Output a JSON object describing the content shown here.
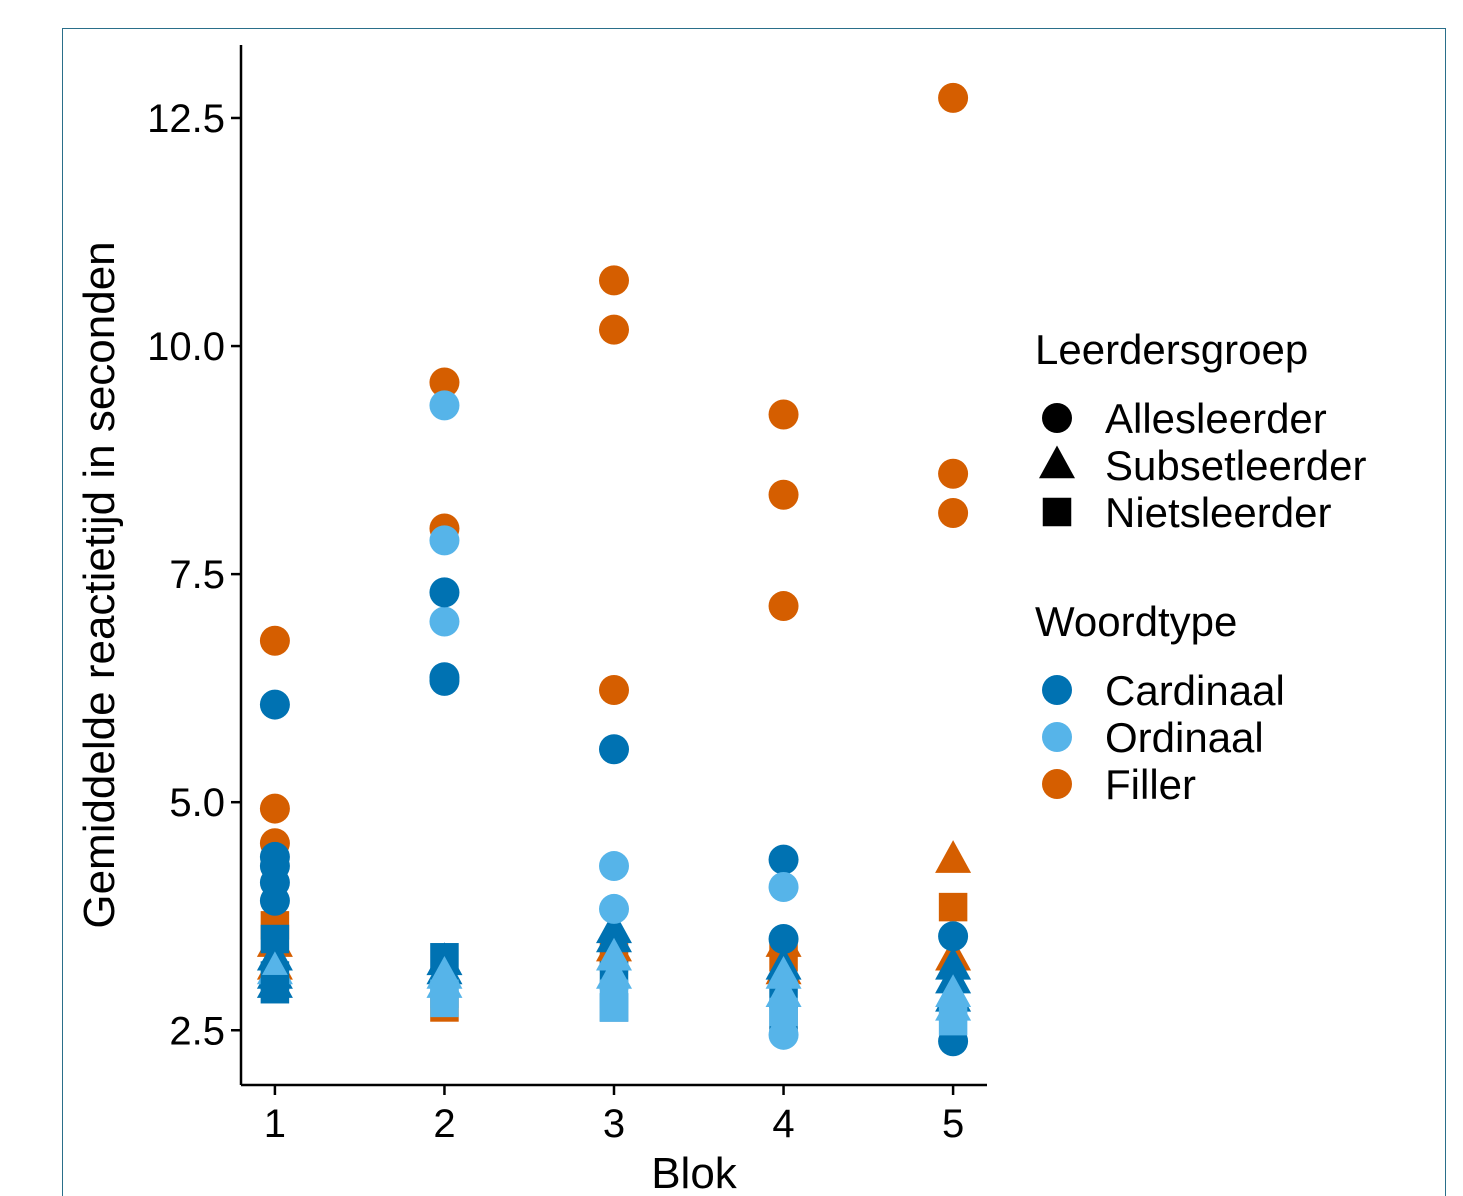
{
  "chart_data": {
    "type": "scatter",
    "xlabel": "Blok",
    "ylabel": "Gemiddelde reactietijd in seconden",
    "x_ticks": [
      "1",
      "2",
      "3",
      "4",
      "5"
    ],
    "y_ticks": [
      "2.5",
      "5.0",
      "7.5",
      "10.0",
      "12.5"
    ],
    "xlim": [
      0.8,
      5.2
    ],
    "ylim": [
      1.9,
      13.3
    ],
    "grid": false,
    "legend": {
      "placement": "right",
      "shape_title": "Leerdersgroep",
      "shape_entries": [
        {
          "label": "Allesleerder",
          "shape": "circle"
        },
        {
          "label": "Subsetleerder",
          "shape": "triangle"
        },
        {
          "label": "Nietsleerder",
          "shape": "square"
        }
      ],
      "color_title": "Woordtype",
      "color_entries": [
        {
          "label": "Cardinaal",
          "color": "#0072B2"
        },
        {
          "label": "Ordinaal",
          "color": "#56B4E9"
        },
        {
          "label": "Filler",
          "color": "#D55E00"
        }
      ]
    },
    "colors": {
      "Cardinaal": "#0072B2",
      "Ordinaal": "#56B4E9",
      "Filler": "#D55E00"
    },
    "points": [
      {
        "x": 1,
        "y": 6.77,
        "type": "Filler",
        "group": "Allesleerder"
      },
      {
        "x": 1,
        "y": 4.93,
        "type": "Filler",
        "group": "Allesleerder"
      },
      {
        "x": 1,
        "y": 4.55,
        "type": "Filler",
        "group": "Allesleerder"
      },
      {
        "x": 1,
        "y": 3.65,
        "type": "Filler",
        "group": "Nietsleerder"
      },
      {
        "x": 1,
        "y": 3.45,
        "type": "Filler",
        "group": "Subsetleerder"
      },
      {
        "x": 1,
        "y": 3.2,
        "type": "Filler",
        "group": "Subsetleerder"
      },
      {
        "x": 1,
        "y": 6.07,
        "type": "Cardinaal",
        "group": "Allesleerder"
      },
      {
        "x": 1,
        "y": 4.4,
        "type": "Cardinaal",
        "group": "Allesleerder"
      },
      {
        "x": 1,
        "y": 4.3,
        "type": "Cardinaal",
        "group": "Allesleerder"
      },
      {
        "x": 1,
        "y": 4.12,
        "type": "Cardinaal",
        "group": "Allesleerder"
      },
      {
        "x": 1,
        "y": 3.92,
        "type": "Cardinaal",
        "group": "Allesleerder"
      },
      {
        "x": 1,
        "y": 3.5,
        "type": "Cardinaal",
        "group": "Nietsleerder"
      },
      {
        "x": 1,
        "y": 3.3,
        "type": "Cardinaal",
        "group": "Subsetleerder"
      },
      {
        "x": 1,
        "y": 3.1,
        "type": "Cardinaal",
        "group": "Subsetleerder"
      },
      {
        "x": 1,
        "y": 3.0,
        "type": "Cardinaal",
        "group": "Subsetleerder"
      },
      {
        "x": 1,
        "y": 3.1,
        "type": "Cardinaal",
        "group": "Nietsleerder"
      },
      {
        "x": 1,
        "y": 3.15,
        "type": "Ordinaal",
        "group": "Subsetleerder"
      },
      {
        "x": 1,
        "y": 2.95,
        "type": "Cardinaal",
        "group": "Nietsleerder"
      },
      {
        "x": 2,
        "y": 9.6,
        "type": "Filler",
        "group": "Allesleerder"
      },
      {
        "x": 2,
        "y": 8.0,
        "type": "Filler",
        "group": "Allesleerder"
      },
      {
        "x": 2,
        "y": 2.75,
        "type": "Filler",
        "group": "Nietsleerder"
      },
      {
        "x": 2,
        "y": 9.35,
        "type": "Ordinaal",
        "group": "Allesleerder"
      },
      {
        "x": 2,
        "y": 7.87,
        "type": "Ordinaal",
        "group": "Allesleerder"
      },
      {
        "x": 2,
        "y": 6.98,
        "type": "Ordinaal",
        "group": "Allesleerder"
      },
      {
        "x": 2,
        "y": 7.3,
        "type": "Cardinaal",
        "group": "Allesleerder"
      },
      {
        "x": 2,
        "y": 6.37,
        "type": "Cardinaal",
        "group": "Allesleerder"
      },
      {
        "x": 2,
        "y": 6.33,
        "type": "Cardinaal",
        "group": "Allesleerder"
      },
      {
        "x": 2,
        "y": 3.3,
        "type": "Cardinaal",
        "group": "Nietsleerder"
      },
      {
        "x": 2,
        "y": 3.25,
        "type": "Cardinaal",
        "group": "Subsetleerder"
      },
      {
        "x": 2,
        "y": 3.15,
        "type": "Cardinaal",
        "group": "Subsetleerder"
      },
      {
        "x": 2,
        "y": 3.1,
        "type": "Ordinaal",
        "group": "Subsetleerder"
      },
      {
        "x": 2,
        "y": 3.0,
        "type": "Ordinaal",
        "group": "Subsetleerder"
      },
      {
        "x": 2,
        "y": 2.9,
        "type": "Ordinaal",
        "group": "Nietsleerder"
      },
      {
        "x": 2,
        "y": 2.8,
        "type": "Ordinaal",
        "group": "Nietsleerder"
      },
      {
        "x": 3,
        "y": 10.72,
        "type": "Filler",
        "group": "Allesleerder"
      },
      {
        "x": 3,
        "y": 10.18,
        "type": "Filler",
        "group": "Allesleerder"
      },
      {
        "x": 3,
        "y": 6.23,
        "type": "Filler",
        "group": "Allesleerder"
      },
      {
        "x": 3,
        "y": 3.4,
        "type": "Filler",
        "group": "Subsetleerder"
      },
      {
        "x": 3,
        "y": 3.3,
        "type": "Filler",
        "group": "Nietsleerder"
      },
      {
        "x": 3,
        "y": 5.58,
        "type": "Cardinaal",
        "group": "Allesleerder"
      },
      {
        "x": 3,
        "y": 3.6,
        "type": "Cardinaal",
        "group": "Subsetleerder"
      },
      {
        "x": 3,
        "y": 3.5,
        "type": "Cardinaal",
        "group": "Subsetleerder"
      },
      {
        "x": 3,
        "y": 3.1,
        "type": "Cardinaal",
        "group": "Nietsleerder"
      },
      {
        "x": 3,
        "y": 2.75,
        "type": "Cardinaal",
        "group": "Nietsleerder"
      },
      {
        "x": 3,
        "y": 4.3,
        "type": "Ordinaal",
        "group": "Allesleerder"
      },
      {
        "x": 3,
        "y": 3.83,
        "type": "Ordinaal",
        "group": "Allesleerder"
      },
      {
        "x": 3,
        "y": 3.3,
        "type": "Ordinaal",
        "group": "Subsetleerder"
      },
      {
        "x": 3,
        "y": 3.1,
        "type": "Ordinaal",
        "group": "Subsetleerder"
      },
      {
        "x": 3,
        "y": 2.9,
        "type": "Ordinaal",
        "group": "Nietsleerder"
      },
      {
        "x": 3,
        "y": 2.75,
        "type": "Ordinaal",
        "group": "Nietsleerder"
      },
      {
        "x": 4,
        "y": 9.25,
        "type": "Filler",
        "group": "Allesleerder"
      },
      {
        "x": 4,
        "y": 8.37,
        "type": "Filler",
        "group": "Allesleerder"
      },
      {
        "x": 4,
        "y": 7.15,
        "type": "Filler",
        "group": "Allesleerder"
      },
      {
        "x": 4,
        "y": 3.45,
        "type": "Filler",
        "group": "Subsetleerder"
      },
      {
        "x": 4,
        "y": 3.3,
        "type": "Filler",
        "group": "Nietsleerder"
      },
      {
        "x": 4,
        "y": 3.15,
        "type": "Filler",
        "group": "Subsetleerder"
      },
      {
        "x": 4,
        "y": 4.37,
        "type": "Cardinaal",
        "group": "Allesleerder"
      },
      {
        "x": 4,
        "y": 3.5,
        "type": "Cardinaal",
        "group": "Allesleerder"
      },
      {
        "x": 4,
        "y": 3.2,
        "type": "Cardinaal",
        "group": "Subsetleerder"
      },
      {
        "x": 4,
        "y": 2.9,
        "type": "Cardinaal",
        "group": "Nietsleerder"
      },
      {
        "x": 4,
        "y": 2.6,
        "type": "Cardinaal",
        "group": "Nietsleerder"
      },
      {
        "x": 4,
        "y": 4.07,
        "type": "Ordinaal",
        "group": "Allesleerder"
      },
      {
        "x": 4,
        "y": 3.1,
        "type": "Ordinaal",
        "group": "Subsetleerder"
      },
      {
        "x": 4,
        "y": 2.9,
        "type": "Ordinaal",
        "group": "Subsetleerder"
      },
      {
        "x": 4,
        "y": 2.7,
        "type": "Ordinaal",
        "group": "Nietsleerder"
      },
      {
        "x": 4,
        "y": 2.45,
        "type": "Ordinaal",
        "group": "Allesleerder"
      },
      {
        "x": 5,
        "y": 12.72,
        "type": "Filler",
        "group": "Allesleerder"
      },
      {
        "x": 5,
        "y": 8.6,
        "type": "Filler",
        "group": "Allesleerder"
      },
      {
        "x": 5,
        "y": 8.17,
        "type": "Filler",
        "group": "Allesleerder"
      },
      {
        "x": 5,
        "y": 4.37,
        "type": "Filler",
        "group": "Subsetleerder"
      },
      {
        "x": 5,
        "y": 3.85,
        "type": "Filler",
        "group": "Nietsleerder"
      },
      {
        "x": 5,
        "y": 3.3,
        "type": "Filler",
        "group": "Subsetleerder"
      },
      {
        "x": 5,
        "y": 3.53,
        "type": "Cardinaal",
        "group": "Allesleerder"
      },
      {
        "x": 5,
        "y": 3.2,
        "type": "Cardinaal",
        "group": "Subsetleerder"
      },
      {
        "x": 5,
        "y": 3.05,
        "type": "Cardinaal",
        "group": "Subsetleerder"
      },
      {
        "x": 5,
        "y": 2.85,
        "type": "Cardinaal",
        "group": "Subsetleerder"
      },
      {
        "x": 5,
        "y": 2.38,
        "type": "Cardinaal",
        "group": "Allesleerder"
      },
      {
        "x": 5,
        "y": 2.9,
        "type": "Ordinaal",
        "group": "Subsetleerder"
      },
      {
        "x": 5,
        "y": 2.75,
        "type": "Ordinaal",
        "group": "Subsetleerder"
      },
      {
        "x": 5,
        "y": 2.6,
        "type": "Ordinaal",
        "group": "Nietsleerder"
      }
    ]
  }
}
